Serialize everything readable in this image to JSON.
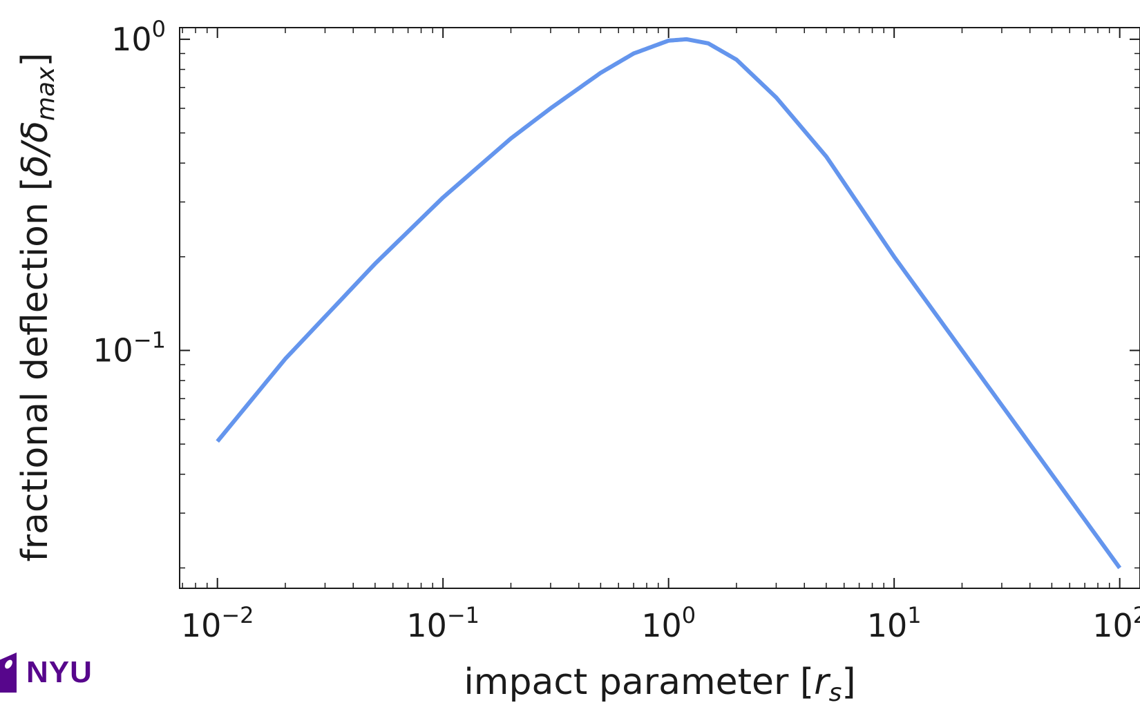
{
  "chart_data": {
    "type": "line",
    "title": "",
    "xlabel": {
      "main": "impact parameter [",
      "var": "r",
      "sub": "s",
      "close": "]"
    },
    "ylabel": {
      "main": "fractional deflection [",
      "math": "δ/δ",
      "sub": "max",
      "close": "]"
    },
    "xscale": "log",
    "yscale": "log",
    "xlim": [
      0.0068,
      123
    ],
    "ylim": [
      0.0172,
      1.09
    ],
    "x_ticks": [
      {
        "base": "10",
        "exp": "−2",
        "value": 0.01
      },
      {
        "base": "10",
        "exp": "−1",
        "value": 0.1
      },
      {
        "base": "10",
        "exp": "0",
        "value": 1
      },
      {
        "base": "10",
        "exp": "1",
        "value": 10
      },
      {
        "base": "10",
        "exp": "2",
        "value": 100
      }
    ],
    "y_ticks": [
      {
        "base": "10",
        "exp": "−1",
        "value": 0.1
      },
      {
        "base": "10",
        "exp": "0",
        "value": 1
      }
    ],
    "grid": false,
    "ticks_direction": "in",
    "series": [
      {
        "color": "#6495ed",
        "x": [
          0.01,
          0.02,
          0.05,
          0.1,
          0.2,
          0.3,
          0.5,
          0.7,
          1.0,
          1.2,
          1.5,
          2.0,
          3.0,
          5.0,
          10,
          20,
          50,
          100
        ],
        "y": [
          0.051,
          0.094,
          0.19,
          0.31,
          0.48,
          0.6,
          0.78,
          0.9,
          0.99,
          1.0,
          0.97,
          0.86,
          0.65,
          0.42,
          0.2,
          0.1,
          0.04,
          0.02
        ]
      }
    ]
  },
  "logo": {
    "text": "NYU",
    "color": "#57068c"
  }
}
